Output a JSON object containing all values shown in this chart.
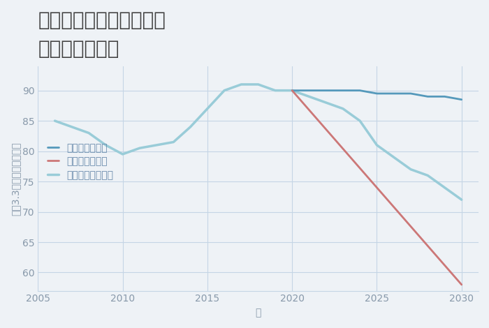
{
  "title": "兵庫県西宮市武庫川町の\n土地の価格推移",
  "xlabel": "年",
  "ylabel": "平（3.3㎡）単価（万円）",
  "background_color": "#eef2f6",
  "plot_background": "#eef2f6",
  "good_scenario": {
    "label": "グッドシナリオ",
    "color": "#5599bb",
    "linewidth": 2.0,
    "x": [
      2020,
      2021,
      2022,
      2023,
      2024,
      2025,
      2026,
      2027,
      2028,
      2029,
      2030
    ],
    "y": [
      90,
      90,
      90,
      90,
      90,
      89.5,
      89.5,
      89.5,
      89,
      89,
      88.5
    ]
  },
  "bad_scenario": {
    "label": "バッドシナリオ",
    "color": "#cc7777",
    "linewidth": 2.0,
    "x": [
      2020,
      2030
    ],
    "y": [
      90,
      58
    ]
  },
  "normal_scenario": {
    "label": "ノーマルシナリオ",
    "color": "#99ccd8",
    "linewidth": 2.5,
    "x": [
      2006,
      2007,
      2008,
      2009,
      2010,
      2011,
      2012,
      2013,
      2014,
      2015,
      2016,
      2017,
      2018,
      2019,
      2020,
      2021,
      2022,
      2023,
      2024,
      2025,
      2026,
      2027,
      2028,
      2029,
      2030
    ],
    "y": [
      85,
      84,
      83,
      81,
      79.5,
      80.5,
      81,
      81.5,
      84,
      87,
      90,
      91,
      91,
      90,
      90,
      89,
      88,
      87,
      85,
      81,
      79,
      77,
      76,
      74,
      72
    ]
  },
  "ylim": [
    57,
    94
  ],
  "xlim": [
    2005,
    2031
  ],
  "yticks": [
    60,
    65,
    70,
    75,
    80,
    85,
    90
  ],
  "xticks": [
    2005,
    2010,
    2015,
    2020,
    2025,
    2030
  ],
  "grid_color": "#c5d5e5",
  "title_color": "#404040",
  "tick_color": "#8899aa",
  "label_color": "#6688aa",
  "legend_fontsize": 10,
  "title_fontsize": 20,
  "axis_label_fontsize": 10
}
